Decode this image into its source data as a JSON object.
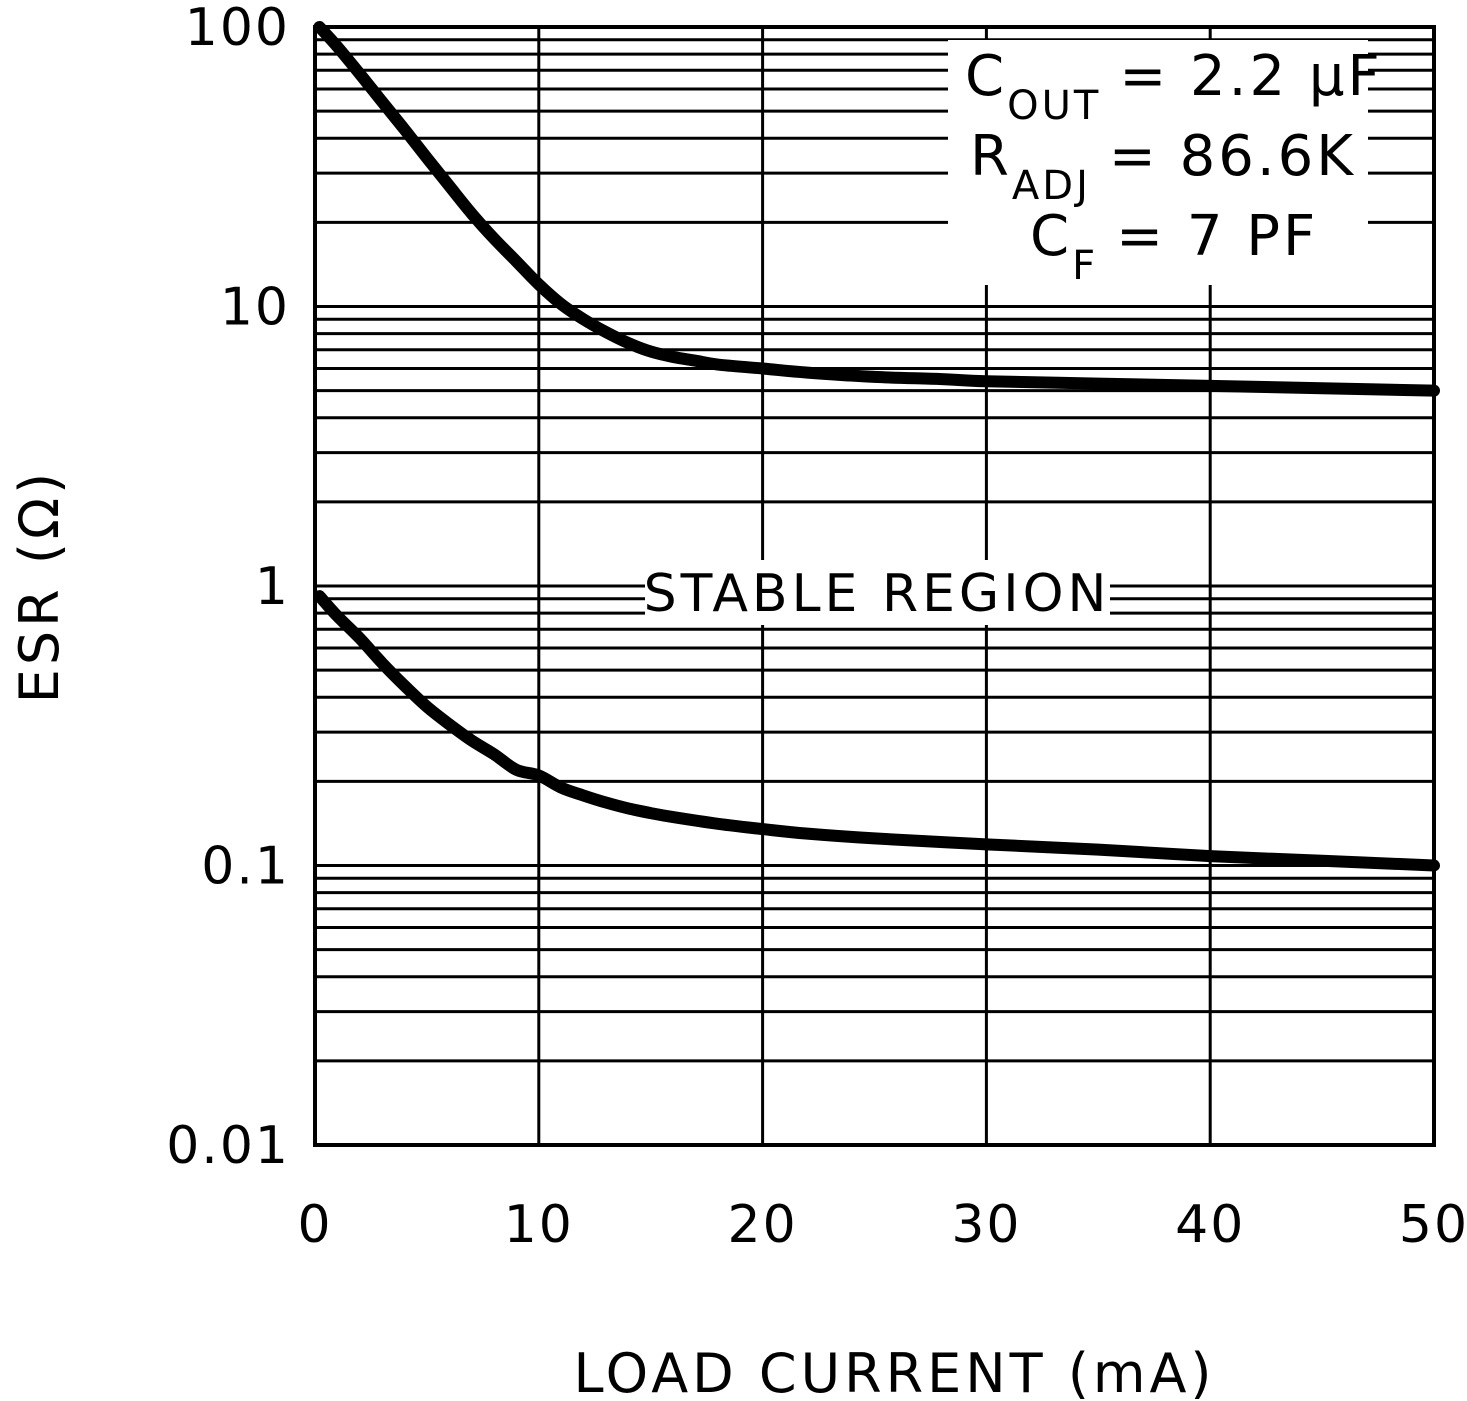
{
  "chart_data": {
    "type": "line",
    "xlabel": "LOAD CURRENT (mA)",
    "ylabel": "ESR (Ω)",
    "x_ticks": [
      "0",
      "10",
      "20",
      "30",
      "40",
      "50"
    ],
    "y_ticks": [
      "0.01",
      "0.1",
      "1",
      "10",
      "100"
    ],
    "xlim": [
      0,
      50
    ],
    "ylim": [
      0.01,
      100
    ],
    "y_scale": "log",
    "grid": true,
    "region_label": "STABLE REGION",
    "annotation": [
      {
        "main": "C",
        "sub": "OUT",
        "rest": "= 2.2 μF"
      },
      {
        "main": "R",
        "sub": "ADJ",
        "rest": "= 86.6K"
      },
      {
        "main": "C",
        "sub": "F",
        "rest": "= 7 PF"
      }
    ],
    "series": [
      {
        "x": [
          0.2,
          1,
          2,
          3,
          4,
          5,
          6,
          7,
          8,
          9,
          10,
          11,
          12,
          13,
          14,
          15,
          16,
          17,
          18,
          20,
          22,
          25,
          28,
          30,
          35,
          40,
          45,
          50
        ],
        "y": [
          100,
          85,
          68,
          54,
          43,
          34,
          27,
          21.5,
          17.5,
          14.5,
          12,
          10.2,
          9.0,
          8.1,
          7.4,
          6.9,
          6.6,
          6.4,
          6.2,
          6.0,
          5.8,
          5.6,
          5.5,
          5.4,
          5.3,
          5.2,
          5.1,
          5.0
        ]
      },
      {
        "x": [
          0.2,
          1,
          2,
          3,
          4,
          5,
          6,
          7,
          8,
          9,
          10,
          11,
          12,
          13,
          14,
          15,
          16,
          18,
          20,
          22,
          25,
          30,
          35,
          40,
          45,
          50
        ],
        "y": [
          0.92,
          0.78,
          0.65,
          0.53,
          0.44,
          0.37,
          0.32,
          0.28,
          0.25,
          0.22,
          0.21,
          0.19,
          0.178,
          0.168,
          0.16,
          0.154,
          0.149,
          0.141,
          0.135,
          0.13,
          0.125,
          0.119,
          0.114,
          0.108,
          0.104,
          0.1
        ]
      }
    ]
  }
}
